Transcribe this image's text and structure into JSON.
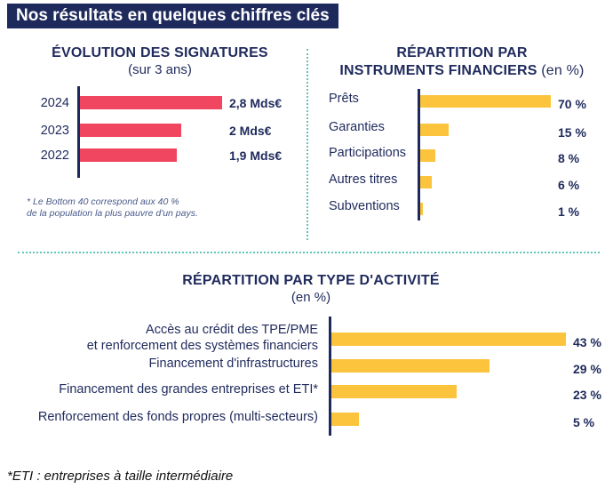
{
  "banner": "Nos résultats en quelques chiffres clés",
  "chart_data": [
    {
      "type": "bar",
      "orientation": "horizontal",
      "title": "ÉVOLUTION DES SIGNATURES",
      "subtitle": "(sur 3 ans)",
      "categories": [
        "2024",
        "2023",
        "2022"
      ],
      "values": [
        2.8,
        2.0,
        1.9
      ],
      "value_labels": [
        "2,8 Mds€",
        "2 Mds€",
        "1,9 Mds€"
      ],
      "xlim": [
        0,
        2.8
      ],
      "color": "#f0465f",
      "note_lines": [
        "* Le Bottom 40 correspond aux 40 %",
        "de la population la plus pauvre d'un pays."
      ]
    },
    {
      "type": "bar",
      "orientation": "horizontal",
      "title_line1": "RÉPARTITION PAR",
      "title_line2": "INSTRUMENTS FINANCIERS",
      "unit": "(en %)",
      "categories": [
        "Prêts",
        "Garanties",
        "Participations",
        "Autres titres",
        "Subventions"
      ],
      "values": [
        70,
        15,
        8,
        6,
        1
      ],
      "value_labels": [
        "70 %",
        "15 %",
        "8 %",
        "6 %",
        "1 %"
      ],
      "xlim": [
        0,
        70
      ],
      "color": "#fbc43c"
    },
    {
      "type": "bar",
      "orientation": "horizontal",
      "title": "RÉPARTITION PAR TYPE D'ACTIVITÉ",
      "subtitle": "(en %)",
      "categories": [
        [
          "Accès au crédit des TPE/PME",
          "et renforcement des systèmes financiers"
        ],
        [
          "Financement d'infrastructures"
        ],
        [
          "Financement des grandes entreprises et ETI*"
        ],
        [
          "Renforcement des fonds propres (multi-secteurs)"
        ]
      ],
      "values": [
        43,
        29,
        23,
        5
      ],
      "value_labels": [
        "43 %",
        "29 %",
        "23 %",
        "5 %"
      ],
      "xlim": [
        0,
        43
      ],
      "color": "#fbc43c"
    }
  ],
  "footnote": "*ETI : entreprises à taille intermédiaire"
}
